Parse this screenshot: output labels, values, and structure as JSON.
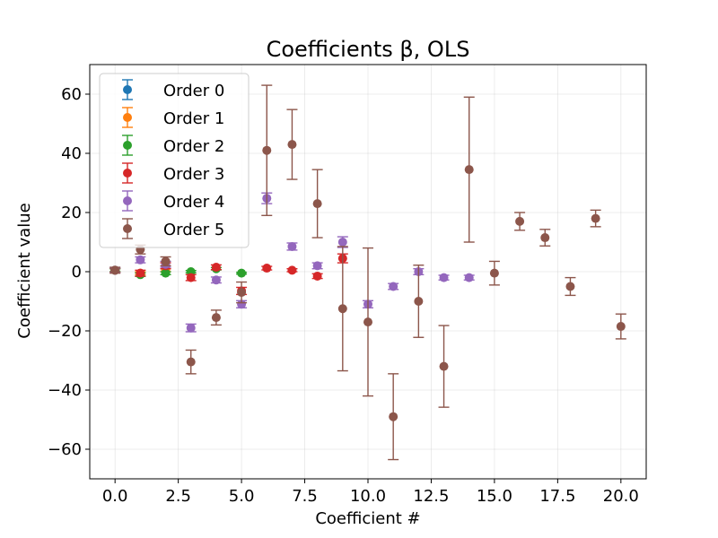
{
  "chart_data": {
    "type": "scatter",
    "title": "Coefficients β, OLS",
    "xlabel": "Coefficient #",
    "ylabel": "Coefficient value",
    "xlim": [
      -1,
      21
    ],
    "ylim": [
      -70,
      70
    ],
    "xticks": [
      0,
      2.5,
      5,
      7.5,
      10,
      12.5,
      15,
      17.5,
      20
    ],
    "xtick_labels": [
      "0.0",
      "2.5",
      "5.0",
      "7.5",
      "10.0",
      "12.5",
      "15.0",
      "17.5",
      "20.0"
    ],
    "yticks": [
      -60,
      -40,
      -20,
      0,
      20,
      40,
      60
    ],
    "ytick_labels": [
      "−60",
      "−40",
      "−20",
      "0",
      "20",
      "40",
      "60"
    ],
    "grid": true,
    "legend_position": "top-left",
    "series": [
      {
        "name": "Order 0",
        "color": "#1f77b4",
        "points": [
          {
            "x": 0,
            "y": 0.5,
            "err": 0.5
          }
        ]
      },
      {
        "name": "Order 1",
        "color": "#ff7f0e",
        "points": [
          {
            "x": 0,
            "y": 0.5,
            "err": 0.5
          },
          {
            "x": 1,
            "y": -0.5,
            "err": 0.5
          },
          {
            "x": 2,
            "y": 0.5,
            "err": 0.5
          }
        ]
      },
      {
        "name": "Order 2",
        "color": "#2ca02c",
        "points": [
          {
            "x": 0,
            "y": 0.5,
            "err": 0.5
          },
          {
            "x": 1,
            "y": -1.0,
            "err": 0.6
          },
          {
            "x": 2,
            "y": -0.5,
            "err": 0.5
          },
          {
            "x": 3,
            "y": 0.0,
            "err": 0.4
          },
          {
            "x": 4,
            "y": 1.0,
            "err": 0.4
          },
          {
            "x": 5,
            "y": -0.5,
            "err": 0.3
          }
        ]
      },
      {
        "name": "Order 3",
        "color": "#d62728",
        "points": [
          {
            "x": 0,
            "y": 0.5,
            "err": 0.7
          },
          {
            "x": 1,
            "y": -0.5,
            "err": 1.0
          },
          {
            "x": 2,
            "y": 2.0,
            "err": 1.0
          },
          {
            "x": 3,
            "y": -2.0,
            "err": 1.0
          },
          {
            "x": 4,
            "y": 1.5,
            "err": 0.8
          },
          {
            "x": 5,
            "y": -6.5,
            "err": 1.2
          },
          {
            "x": 6,
            "y": 1.2,
            "err": 0.6
          },
          {
            "x": 7,
            "y": 0.5,
            "err": 0.5
          },
          {
            "x": 8,
            "y": -1.5,
            "err": 0.8
          },
          {
            "x": 9,
            "y": 4.5,
            "err": 1.5
          }
        ]
      },
      {
        "name": "Order 4",
        "color": "#9467bd",
        "points": [
          {
            "x": 0,
            "y": 0.5,
            "err": 0.8
          },
          {
            "x": 1,
            "y": 4.0,
            "err": 1.0
          },
          {
            "x": 2,
            "y": 2.5,
            "err": 1.0
          },
          {
            "x": 3,
            "y": -19.0,
            "err": 1.3
          },
          {
            "x": 4,
            "y": -2.8,
            "err": 1.0
          },
          {
            "x": 5,
            "y": -11.0,
            "err": 1.2
          },
          {
            "x": 6,
            "y": 24.8,
            "err": 1.8
          },
          {
            "x": 7,
            "y": 8.5,
            "err": 1.2
          },
          {
            "x": 8,
            "y": 2.0,
            "err": 1.0
          },
          {
            "x": 9,
            "y": 10.0,
            "err": 1.8
          },
          {
            "x": 10,
            "y": -11.0,
            "err": 1.2
          },
          {
            "x": 11,
            "y": -5.0,
            "err": 1.0
          },
          {
            "x": 12,
            "y": 0.0,
            "err": 1.0
          },
          {
            "x": 13,
            "y": -2.0,
            "err": 0.8
          },
          {
            "x": 14,
            "y": -2.0,
            "err": 0.8
          }
        ]
      },
      {
        "name": "Order 5",
        "color": "#8c564b",
        "points": [
          {
            "x": 0,
            "y": 0.5,
            "err": 1.0
          },
          {
            "x": 1,
            "y": 7.5,
            "err": 1.5
          },
          {
            "x": 2,
            "y": 3.5,
            "err": 1.5
          },
          {
            "x": 3,
            "y": -30.5,
            "err": 4.0
          },
          {
            "x": 4,
            "y": -15.5,
            "err": 2.5
          },
          {
            "x": 5,
            "y": -7.0,
            "err": 3.5
          },
          {
            "x": 6,
            "y": 41.0,
            "err": 22.0
          },
          {
            "x": 7,
            "y": 43.0,
            "err": 11.8
          },
          {
            "x": 8,
            "y": 23.0,
            "err": 11.5
          },
          {
            "x": 9,
            "y": -12.5,
            "err": 21.0
          },
          {
            "x": 10,
            "y": -17.0,
            "err": 25.0
          },
          {
            "x": 11,
            "y": -49.0,
            "err": 14.5
          },
          {
            "x": 12,
            "y": -10.0,
            "err": 12.2
          },
          {
            "x": 13,
            "y": -32.0,
            "err": 13.8
          },
          {
            "x": 14,
            "y": 34.5,
            "err": 24.5
          },
          {
            "x": 15,
            "y": -0.5,
            "err": 4.0
          },
          {
            "x": 16,
            "y": 17.0,
            "err": 3.0
          },
          {
            "x": 17,
            "y": 11.5,
            "err": 2.8
          },
          {
            "x": 18,
            "y": -5.0,
            "err": 3.0
          },
          {
            "x": 19,
            "y": 18.0,
            "err": 2.8
          },
          {
            "x": 20,
            "y": -18.5,
            "err": 4.2
          }
        ]
      }
    ]
  }
}
